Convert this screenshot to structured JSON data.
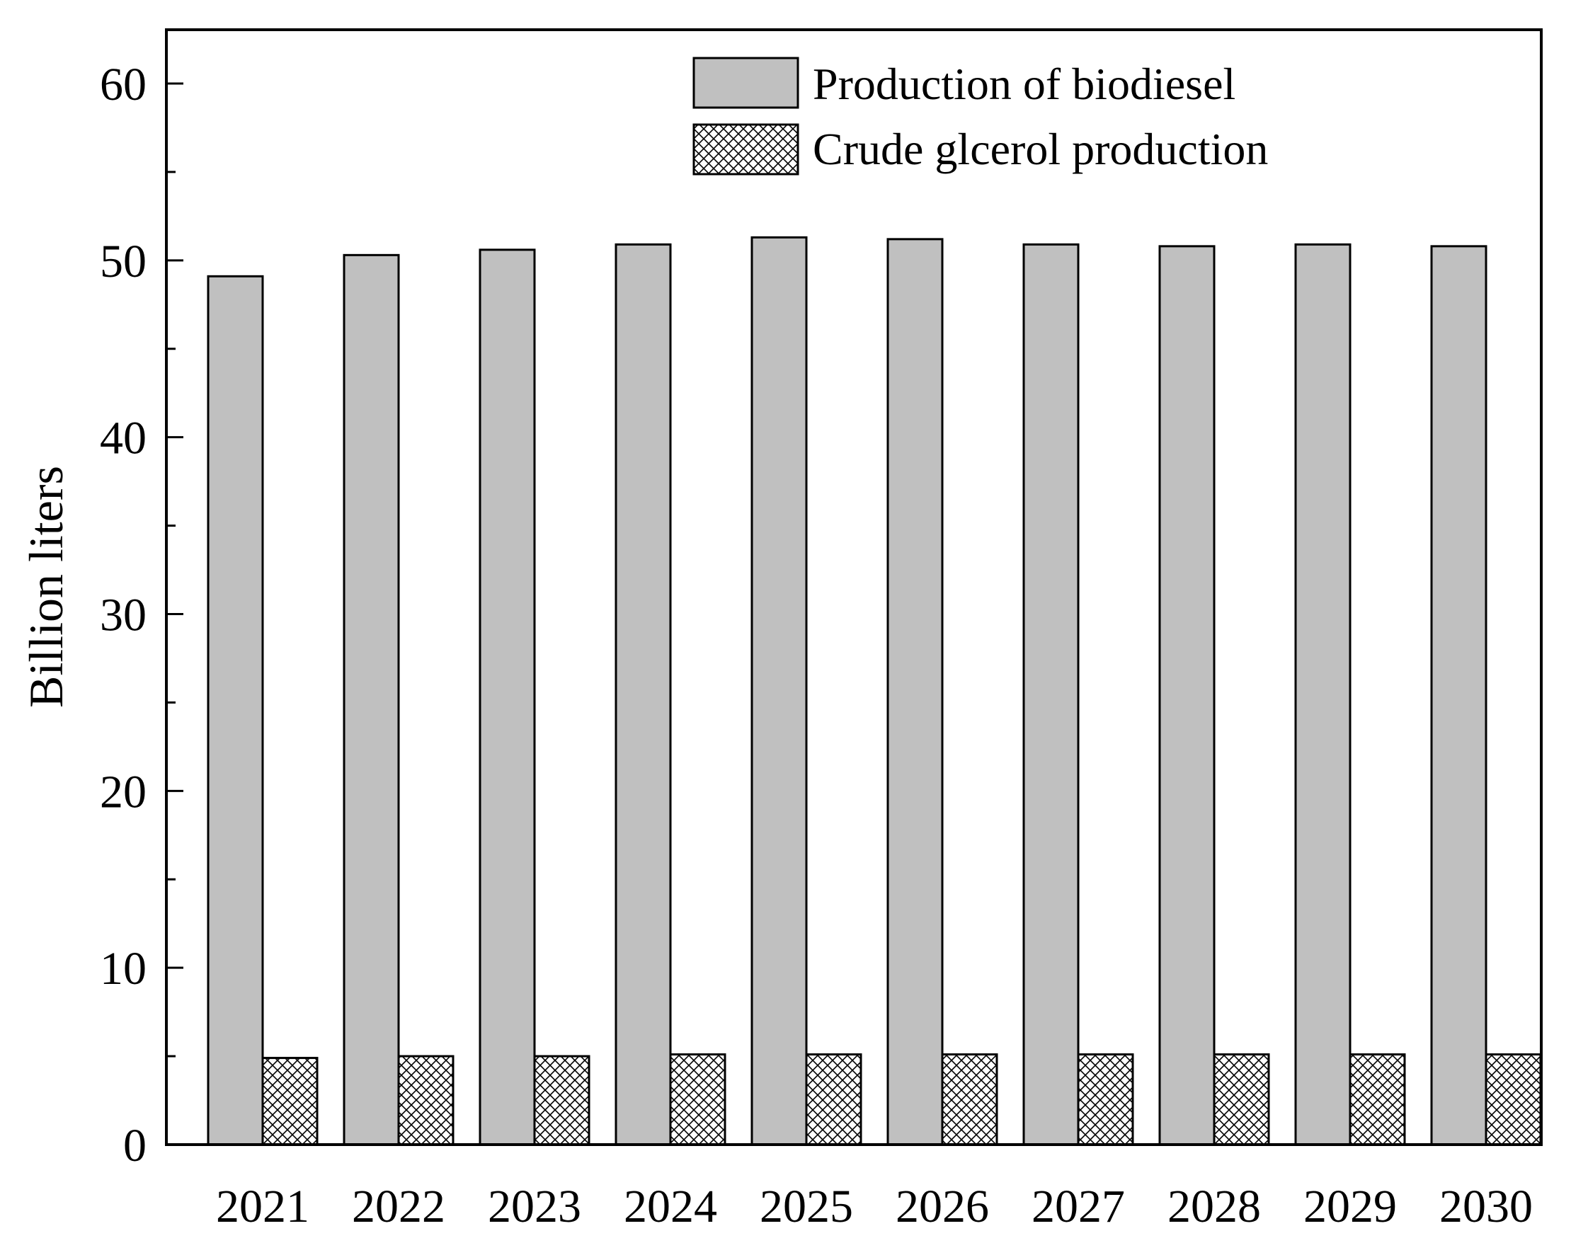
{
  "chart_data": {
    "type": "bar",
    "title": "",
    "xlabel": "",
    "ylabel": "Billion liters",
    "ylim": [
      0,
      63
    ],
    "yticks": [
      0,
      10,
      20,
      30,
      40,
      50,
      60
    ],
    "categories": [
      "2021",
      "2022",
      "2023",
      "2024",
      "2025",
      "2026",
      "2027",
      "2028",
      "2029",
      "2030"
    ],
    "series": [
      {
        "name": "Production of biodiesel",
        "fill": "#c0c0c0",
        "pattern": "solid",
        "values": [
          49.1,
          50.3,
          50.6,
          50.9,
          51.3,
          51.2,
          50.9,
          50.8,
          50.9,
          50.8
        ]
      },
      {
        "name": "Crude glcerol production",
        "fill": "#ffffff",
        "pattern": "crosshatch",
        "values": [
          4.9,
          5.0,
          5.0,
          5.1,
          5.1,
          5.1,
          5.1,
          5.1,
          5.1,
          5.1
        ]
      }
    ],
    "legend": "top-right",
    "grid": false,
    "colors": {
      "stroke": "#000000"
    }
  }
}
